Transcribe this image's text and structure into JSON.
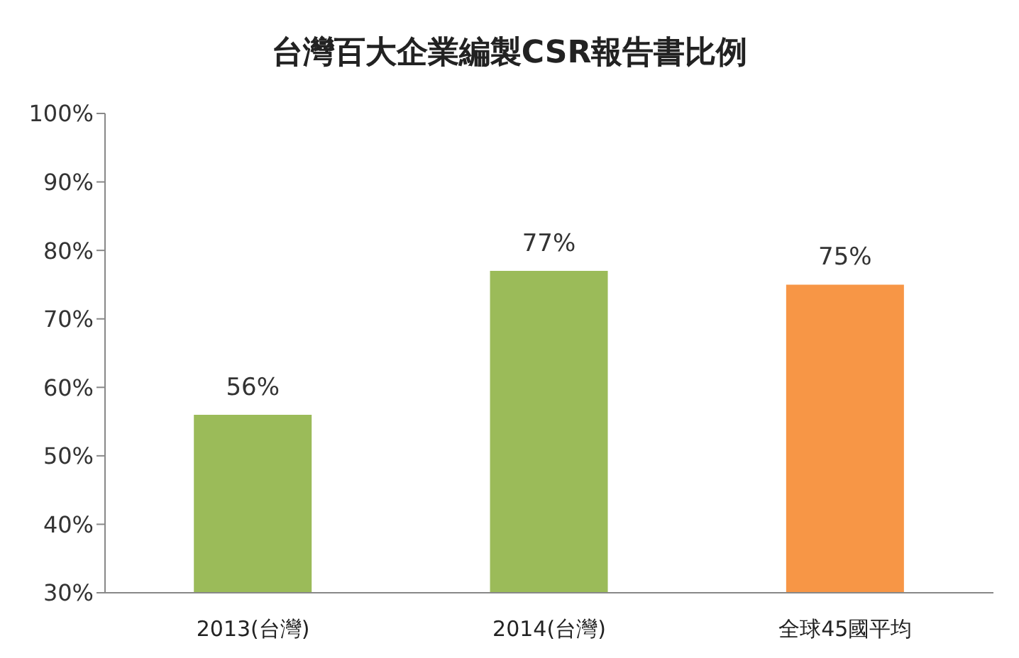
{
  "chart_data": {
    "type": "bar",
    "title": "台灣百大企業編製CSR報告書比例",
    "categories": [
      "2013(台灣)",
      "2014(台灣)",
      "全球45國平均"
    ],
    "values": [
      56,
      77,
      75
    ],
    "colors": [
      "#9bbb59",
      "#9bbb59",
      "#f79646"
    ],
    "value_labels": [
      "56%",
      "77%",
      "75%"
    ],
    "ylim": [
      30,
      100
    ],
    "yticks": [
      {
        "value": 30,
        "label": "30%"
      },
      {
        "value": 40,
        "label": "40%"
      },
      {
        "value": 50,
        "label": "50%"
      },
      {
        "value": 60,
        "label": "60%"
      },
      {
        "value": 70,
        "label": "70%"
      },
      {
        "value": 80,
        "label": "80%"
      },
      {
        "value": 90,
        "label": "90%"
      },
      {
        "value": 100,
        "label": "100%"
      }
    ],
    "grid": false,
    "legend": false
  }
}
